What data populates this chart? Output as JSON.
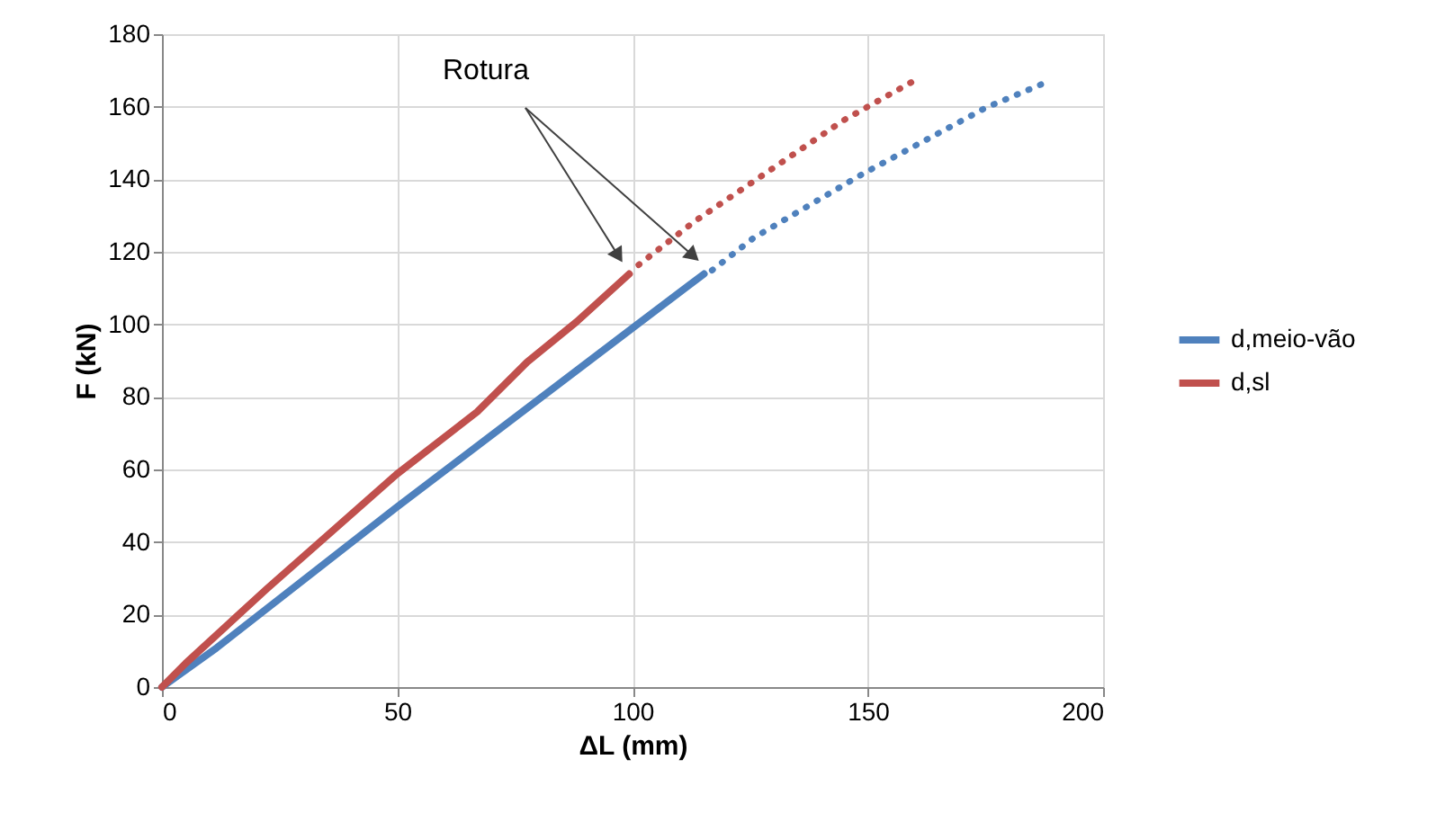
{
  "chart_data": {
    "type": "line",
    "xlabel": "ΔL (mm)",
    "ylabel": "F (kN)",
    "xlim": [
      0,
      200
    ],
    "xticks": [
      0,
      50,
      100,
      150,
      200
    ],
    "ylim": [
      0,
      180
    ],
    "yticks": [
      0,
      20,
      40,
      60,
      80,
      100,
      120,
      140,
      160,
      180
    ],
    "grid": true,
    "legend": "right",
    "marker": "none",
    "annotations": [
      "Rotura"
    ],
    "series": [
      {
        "name": "d,meio-vão",
        "color": "#4f81bd",
        "line_style": "solid",
        "x": [
          0,
          11.6,
          49.6,
          100,
          115.2
        ],
        "values": [
          0,
          10.8,
          49.3,
          99,
          113.9
        ]
      },
      {
        "name": "d,sl",
        "color": "#c0504d",
        "line_style": "solid",
        "x": [
          0,
          5,
          22.2,
          49.9,
          67,
          77.6,
          88.1,
          99.3
        ],
        "values": [
          0,
          6.5,
          27,
          58.7,
          75.9,
          89.6,
          100.7,
          113.9
        ]
      },
      {
        "color": "#4f81bd",
        "line_style": "dotted",
        "x": [
          116.9,
          125.7,
          148.8,
          175.2,
          188.4
        ],
        "values": [
          114.9,
          123.8,
          141.4,
          159.8,
          167
        ]
      },
      {
        "color": "#c0504d",
        "line_style": "dotted",
        "x": [
          101.3,
          113.2,
          129,
          144.9,
          160.7
        ],
        "values": [
          116.4,
          128.4,
          142.3,
          156.3,
          167.8
        ]
      }
    ]
  }
}
